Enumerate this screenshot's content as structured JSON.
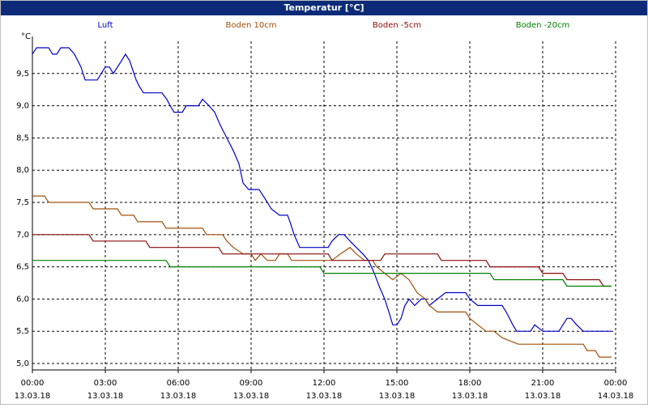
{
  "chart_data": {
    "type": "line",
    "title": "Temperatur [°C]",
    "y_unit": "°C",
    "xlim": [
      0,
      24
    ],
    "ylim": [
      4.9,
      10.0
    ],
    "xticks": [
      {
        "value": 0,
        "label": "00:00"
      },
      {
        "value": 3,
        "label": "03:00"
      },
      {
        "value": 6,
        "label": "06:00"
      },
      {
        "value": 9,
        "label": "09:00"
      },
      {
        "value": 12,
        "label": "12:00"
      },
      {
        "value": 15,
        "label": "15:00"
      },
      {
        "value": 18,
        "label": "18:00"
      },
      {
        "value": 21,
        "label": "21:00"
      },
      {
        "value": 24,
        "label": "00:00"
      }
    ],
    "xtick_dates": [
      "13.03.18",
      "13.03.18",
      "13.03.18",
      "13.03.18",
      "13.03.18",
      "13.03.18",
      "13.03.18",
      "13.03.18",
      "14.03.18"
    ],
    "yticks": [
      {
        "value": 5,
        "label": "5,0"
      },
      {
        "value": 5.5,
        "label": "5,5"
      },
      {
        "value": 6,
        "label": "6,0"
      },
      {
        "value": 6.5,
        "label": "6,5"
      },
      {
        "value": 7,
        "label": "7,0"
      },
      {
        "value": 7.5,
        "label": "7,5"
      },
      {
        "value": 8,
        "label": "8,0"
      },
      {
        "value": 8.5,
        "label": "8,5"
      },
      {
        "value": 9,
        "label": "9,0"
      },
      {
        "value": 9.5,
        "label": "9,5"
      }
    ],
    "grid": true,
    "series": [
      {
        "name": "Luft",
        "color": "#0000c8",
        "x": [
          0,
          0.17,
          0.67,
          0.83,
          1.0,
          1.17,
          1.5,
          1.73,
          2.0,
          2.17,
          2.67,
          2.83,
          3.0,
          3.17,
          3.33,
          3.67,
          3.83,
          4.0,
          4.27,
          4.4,
          4.57,
          5.33,
          5.53,
          5.67,
          5.83,
          6.17,
          6.33,
          6.83,
          7.0,
          7.27,
          7.5,
          7.73,
          8.0,
          8.27,
          8.5,
          8.67,
          8.9,
          9.33,
          9.5,
          9.67,
          9.83,
          10.17,
          10.5,
          10.6,
          10.77,
          11.0,
          12.17,
          12.33,
          12.6,
          12.83,
          13.07,
          13.33,
          13.6,
          13.83,
          14.07,
          14.27,
          14.5,
          14.67,
          14.83,
          15.0,
          15.17,
          15.33,
          15.5,
          15.73,
          16.0,
          16.17,
          16.33,
          16.67,
          17.0,
          17.83,
          18.0,
          18.33,
          19.33,
          19.5,
          19.77,
          19.93,
          20.5,
          20.67,
          21.0,
          21.67,
          21.83,
          22.0,
          22.17,
          22.4,
          22.67,
          23.83
        ],
        "values": [
          9.8,
          9.9,
          9.9,
          9.8,
          9.8,
          9.9,
          9.9,
          9.8,
          9.6,
          9.4,
          9.4,
          9.5,
          9.6,
          9.6,
          9.5,
          9.7,
          9.8,
          9.7,
          9.4,
          9.3,
          9.2,
          9.2,
          9.1,
          9.0,
          8.9,
          8.9,
          9.0,
          9.0,
          9.1,
          9.0,
          8.9,
          8.7,
          8.5,
          8.3,
          8.1,
          7.8,
          7.7,
          7.7,
          7.6,
          7.5,
          7.4,
          7.3,
          7.3,
          7.2,
          7.0,
          6.8,
          6.8,
          6.9,
          7.0,
          7.0,
          6.9,
          6.8,
          6.7,
          6.6,
          6.4,
          6.2,
          6.0,
          5.8,
          5.6,
          5.6,
          5.7,
          5.9,
          6.0,
          5.9,
          6.0,
          6.0,
          5.9,
          6.0,
          6.1,
          6.1,
          6.0,
          5.9,
          5.9,
          5.8,
          5.6,
          5.5,
          5.5,
          5.6,
          5.5,
          5.5,
          5.6,
          5.7,
          5.7,
          5.6,
          5.5,
          5.5
        ]
      },
      {
        "name": "Boden 10cm",
        "color": "#a0500a",
        "x": [
          0,
          0.5,
          0.67,
          2.33,
          2.5,
          3.5,
          3.67,
          4.17,
          4.33,
          5.33,
          5.5,
          7.0,
          7.17,
          7.83,
          8.0,
          8.27,
          8.67,
          9.0,
          9.17,
          9.4,
          9.67,
          10.0,
          10.17,
          10.5,
          10.67,
          12.33,
          12.67,
          13.07,
          13.33,
          13.67,
          14.0,
          14.17,
          14.5,
          14.83,
          15.17,
          15.5,
          15.83,
          16.17,
          16.33,
          16.67,
          17.83,
          18.0,
          18.33,
          18.67,
          19.0,
          19.33,
          20.0,
          22.67,
          22.83,
          23.17,
          23.33,
          23.83
        ],
        "values": [
          7.6,
          7.6,
          7.5,
          7.5,
          7.4,
          7.4,
          7.3,
          7.3,
          7.2,
          7.2,
          7.1,
          7.1,
          7.0,
          7.0,
          6.9,
          6.8,
          6.7,
          6.7,
          6.6,
          6.7,
          6.6,
          6.6,
          6.7,
          6.7,
          6.6,
          6.6,
          6.7,
          6.8,
          6.7,
          6.6,
          6.6,
          6.5,
          6.4,
          6.3,
          6.4,
          6.3,
          6.1,
          6.0,
          5.9,
          5.8,
          5.8,
          5.7,
          5.6,
          5.5,
          5.5,
          5.4,
          5.3,
          5.3,
          5.2,
          5.2,
          5.1,
          5.1
        ]
      },
      {
        "name": "Boden -5cm",
        "color": "#8b0a0a",
        "x": [
          0,
          2.33,
          2.5,
          4.67,
          4.83,
          7.67,
          7.83,
          12.17,
          12.33,
          14.33,
          14.5,
          16.67,
          16.83,
          18.67,
          18.83,
          20.83,
          21.0,
          21.83,
          22.0,
          23.33,
          23.5,
          23.83
        ],
        "values": [
          7.0,
          7.0,
          6.9,
          6.9,
          6.8,
          6.8,
          6.7,
          6.7,
          6.6,
          6.6,
          6.7,
          6.7,
          6.6,
          6.6,
          6.5,
          6.5,
          6.4,
          6.4,
          6.3,
          6.3,
          6.2,
          6.2
        ]
      },
      {
        "name": "Boden -20cm",
        "color": "#008000",
        "x": [
          0,
          5.5,
          5.67,
          11.83,
          12.0,
          18.83,
          19.0,
          21.83,
          22.0,
          23.83
        ],
        "values": [
          6.6,
          6.6,
          6.5,
          6.5,
          6.4,
          6.4,
          6.3,
          6.3,
          6.2,
          6.2
        ]
      }
    ]
  }
}
